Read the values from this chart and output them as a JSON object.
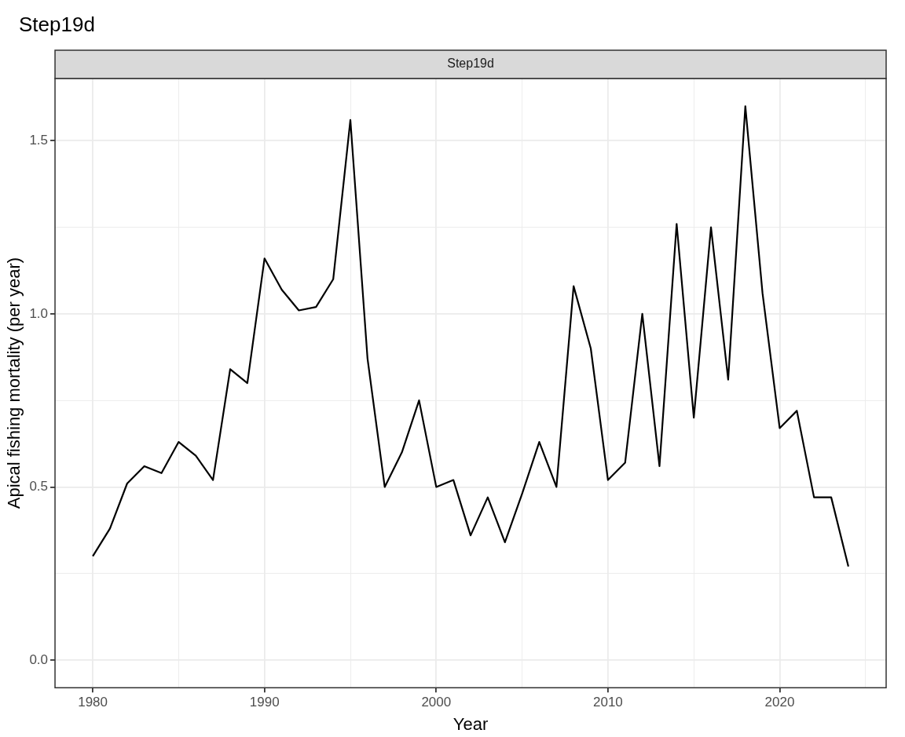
{
  "chart_data": {
    "type": "line",
    "title": "Step19d",
    "annotations": [
      "Step19d"
    ],
    "xlabel": "Year",
    "ylabel": "Apical fishing mortality (per year)",
    "x": [
      1980,
      1981,
      1982,
      1983,
      1984,
      1985,
      1986,
      1987,
      1988,
      1989,
      1990,
      1991,
      1992,
      1993,
      1994,
      1995,
      1996,
      1997,
      1998,
      1999,
      2000,
      2001,
      2002,
      2003,
      2004,
      2005,
      2006,
      2007,
      2008,
      2009,
      2010,
      2011,
      2012,
      2013,
      2014,
      2015,
      2016,
      2017,
      2018,
      2019,
      2020,
      2021,
      2022,
      2023,
      2024
    ],
    "series": [
      {
        "color": "#000000",
        "values": [
          0.3,
          0.38,
          0.51,
          0.56,
          0.54,
          0.63,
          0.59,
          0.52,
          0.84,
          0.8,
          1.16,
          1.07,
          1.01,
          1.02,
          1.1,
          1.56,
          0.87,
          0.5,
          0.6,
          0.75,
          0.5,
          0.52,
          0.36,
          0.47,
          0.34,
          0.48,
          0.63,
          0.5,
          1.08,
          0.9,
          0.52,
          0.57,
          1.0,
          0.56,
          1.26,
          0.7,
          1.25,
          0.81,
          1.6,
          1.06,
          0.67,
          0.72,
          0.47,
          0.47,
          0.27
        ]
      }
    ],
    "xlim": [
      1977.8,
      2026.2
    ],
    "ylim": [
      -0.08,
      1.68
    ],
    "xticks": [
      1980,
      {
        "value": 1985,
        "label": null
      },
      1990,
      {
        "value": 1995,
        "label": null
      },
      2000,
      {
        "value": 2005,
        "label": null
      },
      2010,
      {
        "value": 2015,
        "label": null
      },
      2020,
      {
        "value": 2025,
        "label": null
      }
    ],
    "yticks": [
      {
        "value": 0,
        "label": "0.0"
      },
      {
        "value": 0.25,
        "label": null
      },
      {
        "value": 0.5,
        "label": "0.5"
      },
      {
        "value": 0.75,
        "label": null
      },
      {
        "value": 1,
        "label": "1.0"
      },
      {
        "value": 1.25,
        "label": null
      },
      {
        "value": 1.5,
        "label": "1.5"
      }
    ],
    "grid": true,
    "legend": false,
    "marker": "none",
    "line_style": "solid"
  }
}
